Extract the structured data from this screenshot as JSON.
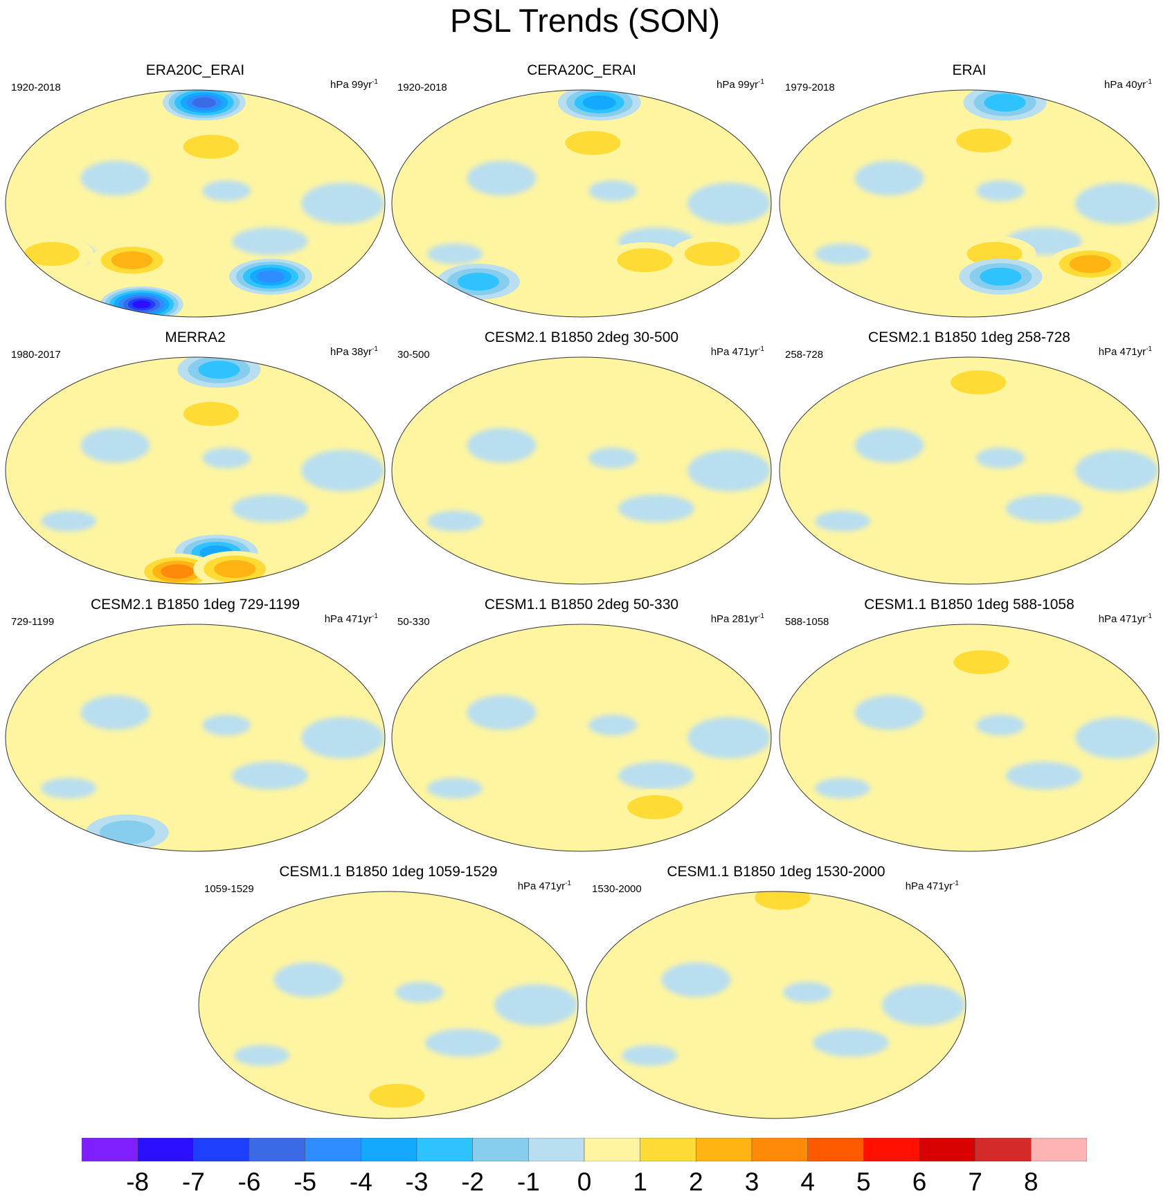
{
  "title": "PSL Trends (SON)",
  "panels": [
    {
      "name": "ERA20C_ERAI",
      "range": "1920-2018",
      "unit": "hPa 99yr",
      "unit_exp": "-1"
    },
    {
      "name": "CERA20C_ERAI",
      "range": "1920-2018",
      "unit": "hPa 99yr",
      "unit_exp": "-1"
    },
    {
      "name": "ERAI",
      "range": "1979-2018",
      "unit": "hPa 40yr",
      "unit_exp": "-1"
    },
    {
      "name": "MERRA2",
      "range": "1980-2017",
      "unit": "hPa 38yr",
      "unit_exp": "-1"
    },
    {
      "name": "CESM2.1 B1850 2deg 30-500",
      "range": "30-500",
      "unit": "hPa 471yr",
      "unit_exp": "-1"
    },
    {
      "name": "CESM2.1 B1850 1deg 258-728",
      "range": "258-728",
      "unit": "hPa 471yr",
      "unit_exp": "-1"
    },
    {
      "name": "CESM2.1 B1850 1deg 729-1199",
      "range": "729-1199",
      "unit": "hPa 471yr",
      "unit_exp": "-1"
    },
    {
      "name": "CESM1.1 B1850 2deg 50-330",
      "range": "50-330",
      "unit": "hPa 281yr",
      "unit_exp": "-1"
    },
    {
      "name": "CESM1.1 B1850 1deg 588-1058",
      "range": "588-1058",
      "unit": "hPa 471yr",
      "unit_exp": "-1"
    },
    {
      "name": "CESM1.1 B1850 1deg 1059-1529",
      "range": "1059-1529",
      "unit": "hPa 471yr",
      "unit_exp": "-1"
    },
    {
      "name": "CESM1.1 B1850 1deg 1530-2000",
      "range": "1530-2000",
      "unit": "hPa 471yr",
      "unit_exp": "-1"
    }
  ],
  "colorbar": {
    "colors": [
      "#7f1fff",
      "#2b10ff",
      "#1f3fff",
      "#3a6ae6",
      "#2d8cff",
      "#14a8ff",
      "#2ec3ff",
      "#87cdee",
      "#b8def0",
      "#fff5a0",
      "#ffdc35",
      "#ffb414",
      "#ff8a0a",
      "#ff5a00",
      "#ff1000",
      "#d80000",
      "#d52a2a",
      "#ffb4b4"
    ],
    "labels": [
      "-8",
      "-7",
      "-6",
      "-5",
      "-4",
      "-3",
      "-2",
      "-1",
      "0",
      "1",
      "2",
      "3",
      "4",
      "5",
      "6",
      "7",
      "8"
    ]
  },
  "chart_data": {
    "type": "heatmap",
    "title": "PSL Trends (SON)",
    "colorbar_levels": [
      -8,
      -7,
      -6,
      -5,
      -4,
      -3,
      -2,
      -1,
      0,
      1,
      2,
      3,
      4,
      5,
      6,
      7,
      8
    ],
    "panels": [
      {
        "name": "ERA20C_ERAI",
        "period": "1920-2018",
        "units": "hPa 99yr-1",
        "features": [
          {
            "lon": -160,
            "lat": 45,
            "value": 2
          },
          {
            "lon": 100,
            "lat": -45,
            "value": 3
          },
          {
            "lon": 10,
            "lat": -40,
            "value": 2
          },
          {
            "lon": 0,
            "lat": -80,
            "value": -8
          },
          {
            "lon": -150,
            "lat": 80,
            "value": -6
          },
          {
            "lon": -60,
            "lat": -58,
            "value": -5
          }
        ]
      },
      {
        "name": "CERA20C_ERAI",
        "period": "1920-2018",
        "units": "hPa 99yr-1",
        "features": [
          {
            "lon": -165,
            "lat": 48,
            "value": 2
          },
          {
            "lon": -100,
            "lat": -45,
            "value": 2
          },
          {
            "lon": -25,
            "lat": -40,
            "value": 2
          },
          {
            "lon": 0,
            "lat": -62,
            "value": -3
          },
          {
            "lon": -120,
            "lat": 80,
            "value": -4
          }
        ]
      },
      {
        "name": "ERAI",
        "period": "1979-2018",
        "units": "hPa 40yr-1",
        "features": [
          {
            "lon": -160,
            "lat": 50,
            "value": 2
          },
          {
            "lon": -150,
            "lat": -40,
            "value": 2
          },
          {
            "lon": -130,
            "lat": -58,
            "value": -3
          },
          {
            "lon": -20,
            "lat": -48,
            "value": 3
          },
          {
            "lon": -60,
            "lat": 80,
            "value": -3
          }
        ]
      },
      {
        "name": "MERRA2",
        "period": "1980-2017",
        "units": "hPa 38yr-1",
        "features": [
          {
            "lon": -160,
            "lat": 45,
            "value": 2
          },
          {
            "lon": -140,
            "lat": -65,
            "value": -4
          },
          {
            "lon": 120,
            "lat": -80,
            "value": 4
          },
          {
            "lon": -60,
            "lat": -78,
            "value": 3
          },
          {
            "lon": -100,
            "lat": 80,
            "value": -3
          }
        ]
      },
      {
        "name": "CESM2.1 B1850 2deg 30-500",
        "period": "30-500",
        "units": "hPa 471yr-1",
        "features": [
          {
            "lon": 0,
            "lat": 0,
            "value": 0.5
          }
        ]
      },
      {
        "name": "CESM2.1 B1850 1deg 258-728",
        "period": "258-728",
        "units": "hPa 471yr-1",
        "features": [
          {
            "lon": -160,
            "lat": 70,
            "value": 2
          }
        ]
      },
      {
        "name": "CESM2.1 B1850 1deg 729-1199",
        "period": "729-1199",
        "units": "hPa 471yr-1",
        "features": [
          {
            "lon": 0,
            "lat": -75,
            "value": -1.5
          }
        ]
      },
      {
        "name": "CESM1.1 B1850 2deg 50-330",
        "period": "50-330",
        "units": "hPa 281yr-1",
        "features": [
          {
            "lon": -70,
            "lat": -55,
            "value": 2
          }
        ]
      },
      {
        "name": "CESM1.1 B1850 1deg 588-1058",
        "period": "588-1058",
        "units": "hPa 471yr-1",
        "features": [
          {
            "lon": -160,
            "lat": 60,
            "value": 2
          }
        ]
      },
      {
        "name": "CESM1.1 B1850 1deg 1059-1529",
        "period": "1059-1529",
        "units": "hPa 471yr-1",
        "features": [
          {
            "lon": -160,
            "lat": -72,
            "value": 2
          }
        ]
      },
      {
        "name": "CESM1.1 B1850 1deg 1530-2000",
        "period": "1530-2000",
        "units": "hPa 471yr-1",
        "features": [
          {
            "lon": -150,
            "lat": 85,
            "value": 2
          }
        ]
      }
    ]
  }
}
